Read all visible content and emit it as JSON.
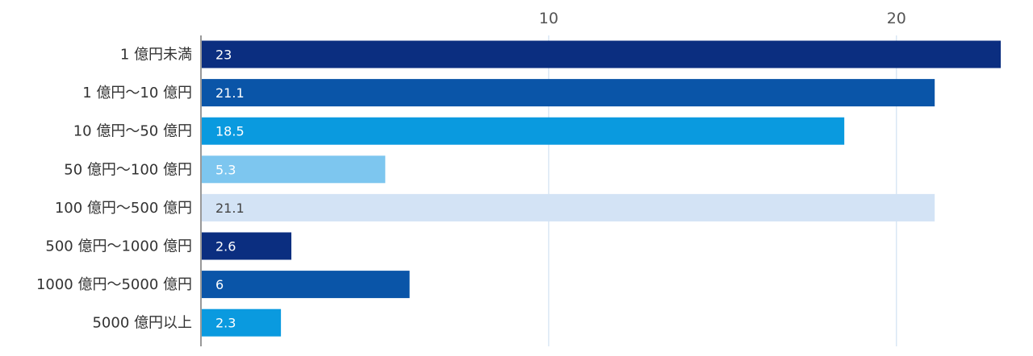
{
  "chart_data": {
    "type": "bar",
    "orientation": "horizontal",
    "categories": [
      "1 億円未満",
      "1 億円〜10 億円",
      "10 億円〜50 億円",
      "50 億円〜100 億円",
      "100 億円〜500 億円",
      "500 億円〜1000 億円",
      "1000 億円〜5000 億円",
      "5000 億円以上"
    ],
    "values": [
      23,
      21.1,
      18.5,
      5.3,
      21.1,
      2.6,
      6,
      2.3
    ],
    "data_labels": [
      "23",
      "21.1",
      "18.5",
      "5.3",
      "21.1",
      "2.6",
      "6",
      "2.3"
    ],
    "bar_colors": [
      "#0B2E80",
      "#0A55A8",
      "#0A9ADF",
      "#7DC6EF",
      "#D3E3F5",
      "#0B2E80",
      "#0A55A8",
      "#0A9ADF"
    ],
    "label_colors": [
      "#ffffff",
      "#ffffff",
      "#ffffff",
      "#ffffff",
      "#444444",
      "#ffffff",
      "#ffffff",
      "#ffffff"
    ],
    "x_ticks": [
      10,
      20
    ],
    "x_tick_labels": [
      "10",
      "20"
    ],
    "xlim": [
      0,
      23.3
    ],
    "axis_position": "top",
    "grid": true,
    "gridline_color": "#C8DDF0",
    "axis_line_color": "#555555"
  }
}
